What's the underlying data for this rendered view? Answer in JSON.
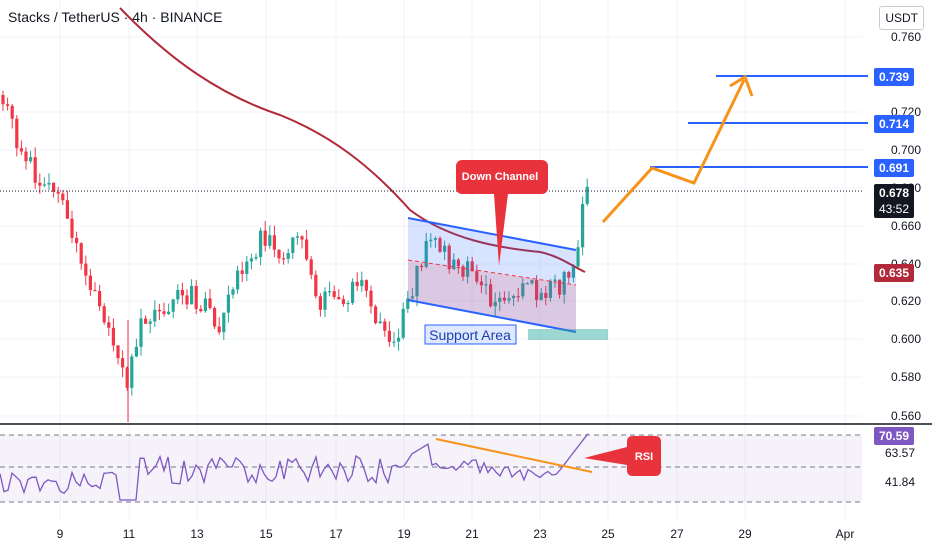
{
  "chart_title": "Stacks / TetherUS · 4h · BINANCE",
  "currency": "USDT",
  "colors": {
    "up": "#26a69a",
    "down": "#f23645",
    "ma": "#b22a3a",
    "blue": "#2962ff",
    "orange": "#f7931a",
    "rsi": "#7e57c2",
    "callout": "#e8323c"
  },
  "chart_data": {
    "type": "candlestick",
    "price_axis": {
      "ticks": [
        0.56,
        0.58,
        0.6,
        0.62,
        0.64,
        0.66,
        0.68,
        0.7,
        0.72,
        0.76
      ]
    },
    "time_axis": {
      "labels": [
        "9",
        "11",
        "13",
        "15",
        "17",
        "19",
        "21",
        "23",
        "25",
        "27",
        "29",
        "Apr"
      ]
    },
    "current_price": "0.678",
    "countdown": "43:52",
    "ma_value": "0.635",
    "targets": [
      "0.691",
      "0.714",
      "0.739"
    ],
    "annotations": {
      "channel": "Down Channel",
      "support": "Support Area",
      "rsi": "RSI"
    },
    "rsi": {
      "current": "70.59",
      "levels": [
        "63.57",
        "41.84"
      ]
    }
  }
}
